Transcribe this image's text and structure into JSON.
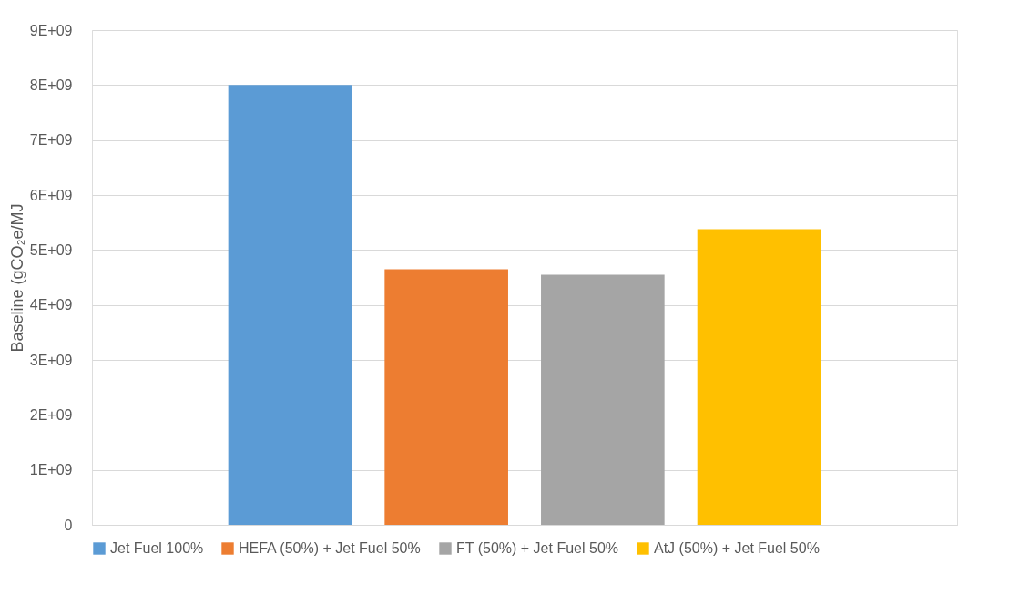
{
  "chart_data": {
    "type": "bar",
    "ylabel": "Baseline (gCO₂e/MJ",
    "categories": [
      null
    ],
    "series": [
      {
        "name": "Jet Fuel 100%",
        "color": "#5b9bd5",
        "values": [
          8000000000
        ]
      },
      {
        "name": "HEFA (50%) + Jet Fuel 50%",
        "color": "#ed7d31",
        "values": [
          4650000000
        ]
      },
      {
        "name": "FT (50%) + Jet Fuel 50%",
        "color": "#a5a5a5",
        "values": [
          4550000000
        ]
      },
      {
        "name": "AtJ (50%) + Jet Fuel 50%",
        "color": "#ffc000",
        "values": [
          5380000000
        ]
      }
    ],
    "ylim": [
      0,
      9000000000
    ],
    "yticks": [
      0,
      {
        "value": 1000000000,
        "label": "1E+09"
      },
      {
        "value": 2000000000,
        "label": "2E+09"
      },
      {
        "value": 3000000000,
        "label": "3E+09"
      },
      {
        "value": 4000000000,
        "label": "4E+09"
      },
      {
        "value": 5000000000,
        "label": "5E+09"
      },
      {
        "value": 6000000000,
        "label": "6E+09"
      },
      {
        "value": 7000000000,
        "label": "7E+09"
      },
      {
        "value": 8000000000,
        "label": "8E+09"
      },
      {
        "value": 9000000000,
        "label": "9E+09"
      }
    ],
    "grid": "y",
    "legend": "bottom",
    "tick_labels": "y"
  }
}
